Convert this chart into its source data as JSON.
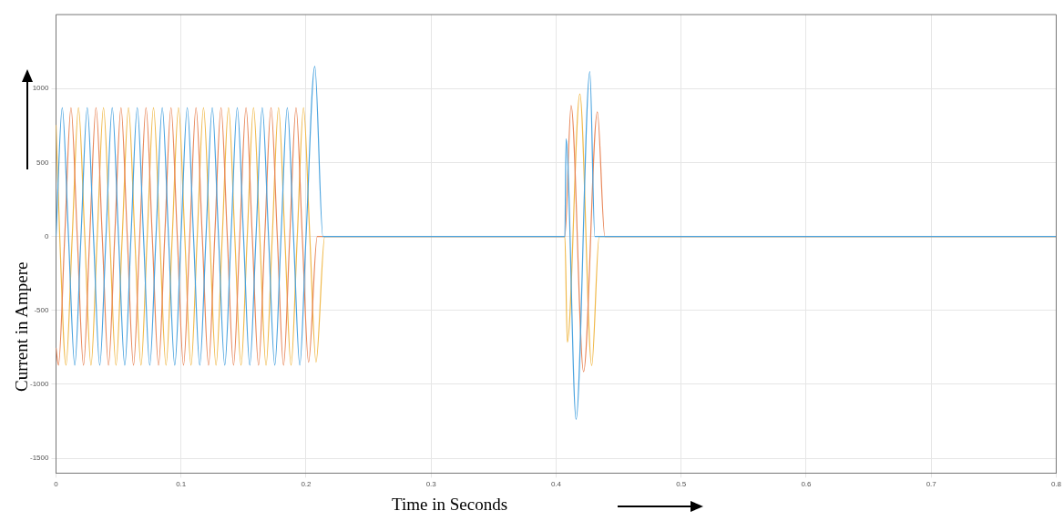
{
  "chart_data": {
    "type": "line",
    "xlabel": "Time in Seconds",
    "ylabel": "Current in Ampere",
    "xlim": [
      0,
      0.8
    ],
    "xticks": [
      0,
      0.1,
      0.2,
      0.3,
      0.4,
      0.5,
      0.6,
      0.7,
      0.8
    ],
    "ylim": [
      -1600,
      1500
    ],
    "yticks": [
      -1500,
      -1000,
      -500,
      0,
      500,
      1000
    ],
    "grid": true,
    "line_style": "solid",
    "series": [
      {
        "color": "#4aa3df",
        "x": [
          0,
          0.005,
          0.01,
          0.015,
          0.02,
          0.025,
          0.03,
          0.035,
          0.04,
          0.045,
          0.05,
          0.055,
          0.06,
          0.065,
          0.07,
          0.075,
          0.08,
          0.085,
          0.09,
          0.095,
          0.1,
          0.105,
          0.11,
          0.115,
          0.12,
          0.125,
          0.13,
          0.135,
          0.14,
          0.145,
          0.15,
          0.155,
          0.16,
          0.165,
          0.17,
          0.175,
          0.18,
          0.185,
          0.19,
          0.195,
          0.2,
          0.207,
          0.2135,
          0.407,
          0.408,
          0.416,
          0.427,
          0.431,
          0.8
        ],
        "values": [
          0,
          870,
          0,
          -870,
          0,
          870,
          0,
          -870,
          0,
          870,
          0,
          -870,
          0,
          870,
          0,
          -870,
          0,
          870,
          0,
          -870,
          0,
          870,
          0,
          -870,
          0,
          870,
          0,
          -870,
          0,
          870,
          0,
          -870,
          0,
          870,
          0,
          -870,
          0,
          870,
          0,
          -870,
          0,
          1150,
          0,
          0,
          660,
          -1236,
          1115,
          0,
          0
        ]
      },
      {
        "color": "#e8875a",
        "x": [
          0,
          0.002,
          0.007,
          0.012,
          0.017,
          0.022,
          0.027,
          0.032,
          0.037,
          0.042,
          0.047,
          0.052,
          0.057,
          0.062,
          0.067,
          0.072,
          0.077,
          0.082,
          0.087,
          0.092,
          0.097,
          0.102,
          0.107,
          0.112,
          0.117,
          0.122,
          0.127,
          0.132,
          0.137,
          0.142,
          0.147,
          0.152,
          0.157,
          0.162,
          0.167,
          0.172,
          0.177,
          0.182,
          0.187,
          0.192,
          0.197,
          0.202,
          0.209,
          0.407,
          0.412,
          0.422,
          0.433,
          0.439,
          0.8
        ],
        "values": [
          -753,
          -870,
          0,
          870,
          0,
          -870,
          0,
          870,
          0,
          -870,
          0,
          870,
          0,
          -870,
          0,
          870,
          0,
          -870,
          0,
          870,
          0,
          -870,
          0,
          870,
          0,
          -870,
          0,
          870,
          0,
          -870,
          0,
          870,
          0,
          -870,
          0,
          870,
          0,
          -870,
          0,
          870,
          0,
          -850,
          0,
          0,
          885,
          -915,
          842,
          0,
          0
        ]
      },
      {
        "color": "#f0b94a",
        "x": [
          0,
          0.003,
          0.008,
          0.013,
          0.018,
          0.023,
          0.028,
          0.033,
          0.038,
          0.043,
          0.048,
          0.053,
          0.058,
          0.063,
          0.068,
          0.073,
          0.078,
          0.083,
          0.088,
          0.093,
          0.098,
          0.103,
          0.108,
          0.113,
          0.118,
          0.123,
          0.128,
          0.133,
          0.138,
          0.143,
          0.148,
          0.153,
          0.158,
          0.163,
          0.168,
          0.173,
          0.178,
          0.183,
          0.188,
          0.193,
          0.198,
          0.203,
          0.208,
          0.215,
          0.407,
          0.409,
          0.419,
          0.4285,
          0.4345,
          0.8
        ],
        "values": [
          753,
          0,
          -870,
          0,
          870,
          0,
          -870,
          0,
          870,
          0,
          -870,
          0,
          870,
          0,
          -870,
          0,
          870,
          0,
          -870,
          0,
          870,
          0,
          -870,
          0,
          870,
          0,
          -870,
          0,
          870,
          0,
          -870,
          0,
          870,
          0,
          -870,
          0,
          870,
          0,
          -870,
          0,
          870,
          0,
          -850,
          0,
          0,
          -715,
          963,
          -873,
          0,
          0
        ]
      }
    ]
  }
}
